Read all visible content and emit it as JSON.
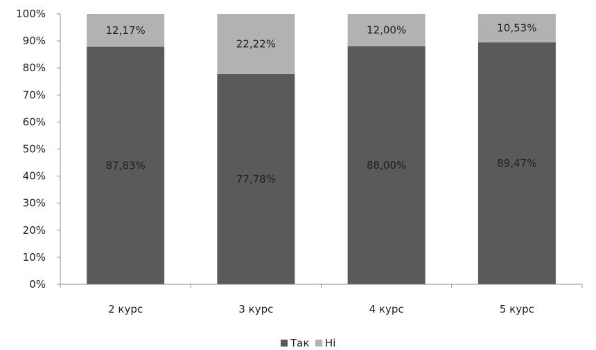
{
  "chart_data": {
    "type": "bar",
    "stacked": true,
    "categories": [
      "2 курс",
      "3 курс",
      "4 курс",
      "5 курс"
    ],
    "series": [
      {
        "name": "Так",
        "color": "#5a5a5a",
        "values": [
          87.83,
          77.78,
          88.0,
          89.47
        ],
        "labels": [
          "87,83%",
          "77,78%",
          "88,00%",
          "89,47%"
        ]
      },
      {
        "name": "Ні",
        "color": "#b2b2b2",
        "values": [
          12.17,
          22.22,
          12.0,
          10.53
        ],
        "labels": [
          "12,17%",
          "22,22%",
          "12,00%",
          "10,53%"
        ]
      }
    ],
    "y_ticks": [
      "0%",
      "10%",
      "20%",
      "30%",
      "40%",
      "50%",
      "60%",
      "70%",
      "80%",
      "90%",
      "100%"
    ],
    "ylim": [
      0,
      100
    ],
    "grid": false,
    "legend_position": "bottom"
  }
}
